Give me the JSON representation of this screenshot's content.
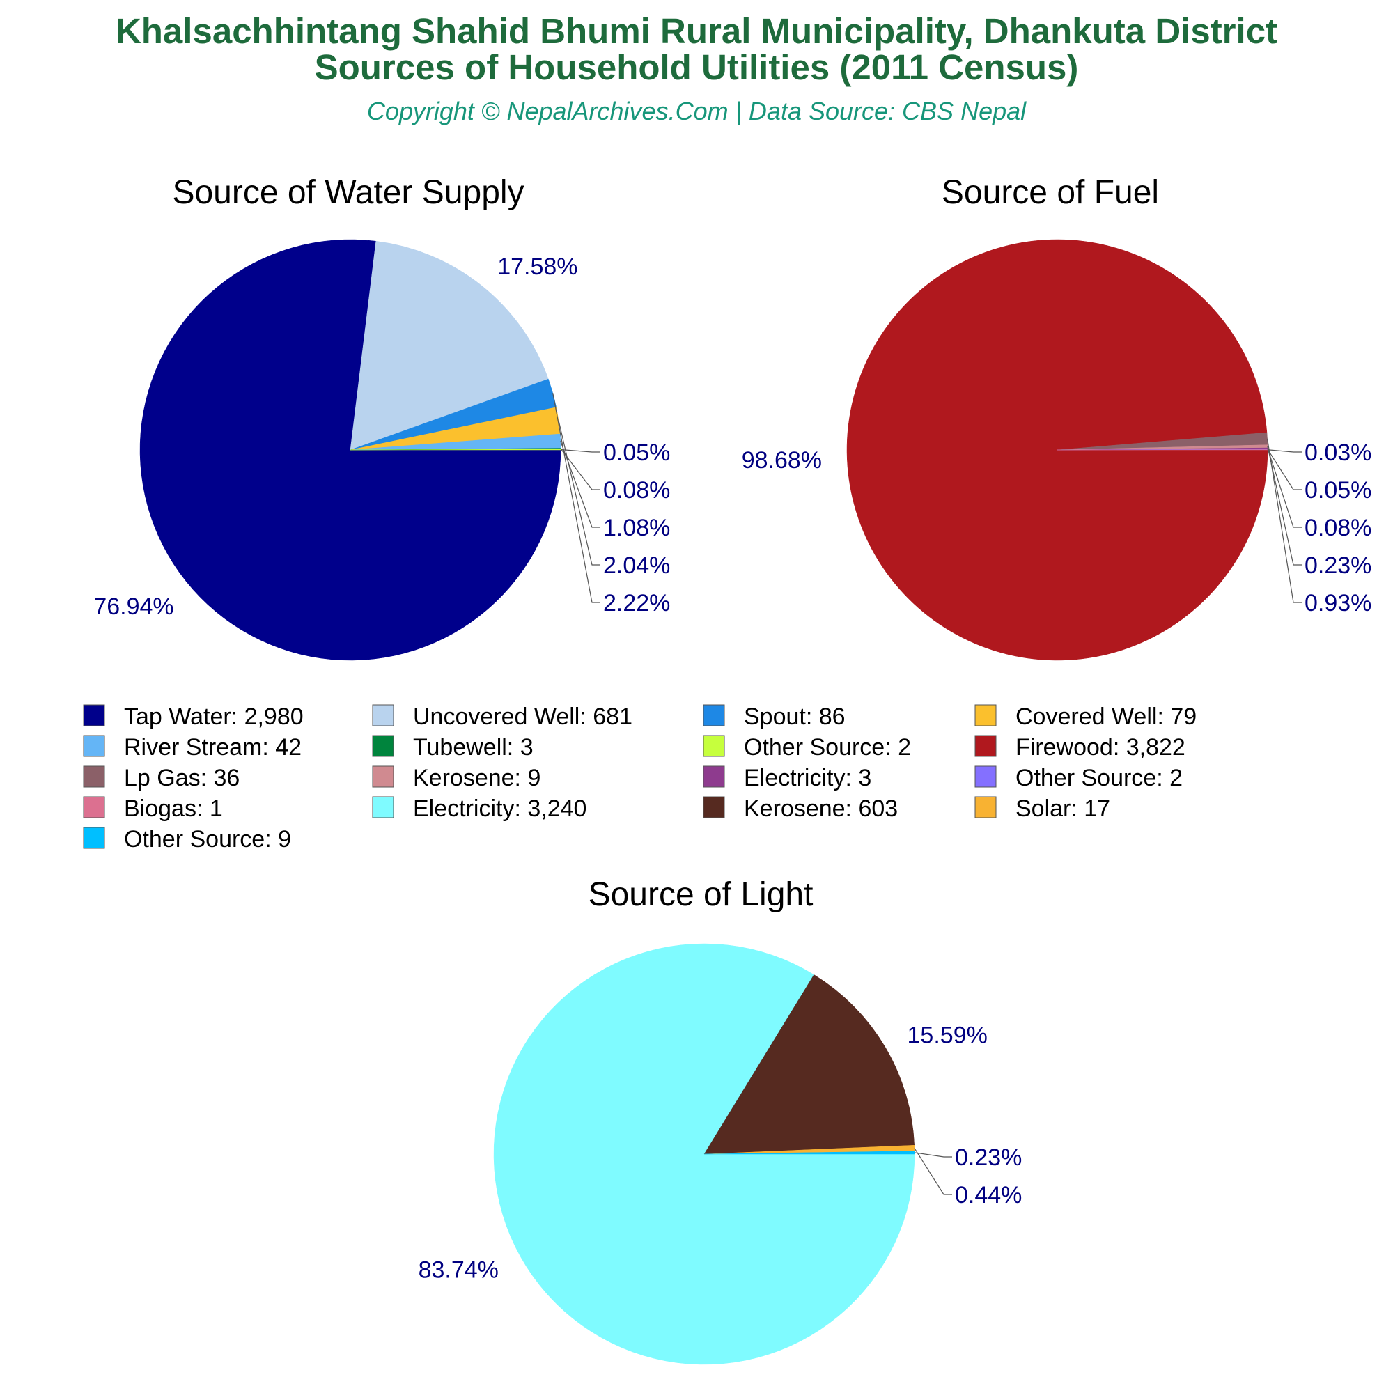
{
  "header": {
    "title_line1": "Khalsachhintang Shahid Bhumi Rural Municipality, Dhankuta District",
    "title_line2": "Sources of Household Utilities (2011 Census)",
    "subtitle": "Copyright © NepalArchives.Com | Data Source: CBS Nepal"
  },
  "chart_data": [
    {
      "type": "pie",
      "title": "Source of Water Supply",
      "slices": [
        {
          "label": "Tap Water",
          "value": 2980,
          "percent_label": "76.94%",
          "color": "#00008b"
        },
        {
          "label": "Uncovered Well",
          "value": 681,
          "percent_label": "17.58%",
          "color": "#b9d3ee"
        },
        {
          "label": "Spout",
          "value": 86,
          "percent_label": "2.22%",
          "color": "#1e88e5"
        },
        {
          "label": "Covered Well",
          "value": 79,
          "percent_label": "2.04%",
          "color": "#fbc02d"
        },
        {
          "label": "River Stream",
          "value": 42,
          "percent_label": "1.08%",
          "color": "#64b5f6"
        },
        {
          "label": "Tubewell",
          "value": 3,
          "percent_label": "0.08%",
          "color": "#00843d"
        },
        {
          "label": "Other Source",
          "value": 2,
          "percent_label": "0.05%",
          "color": "#c6ff3d"
        }
      ]
    },
    {
      "type": "pie",
      "title": "Source of Fuel",
      "slices": [
        {
          "label": "Firewood",
          "value": 3822,
          "percent_label": "98.68%",
          "color": "#b0181e"
        },
        {
          "label": "Lp Gas",
          "value": 36,
          "percent_label": "0.93%",
          "color": "#8b6068"
        },
        {
          "label": "Kerosene",
          "value": 9,
          "percent_label": "0.23%",
          "color": "#d08a90"
        },
        {
          "label": "Electricity",
          "value": 3,
          "percent_label": "0.08%",
          "color": "#8e3b8e"
        },
        {
          "label": "Other Source",
          "value": 2,
          "percent_label": "0.05%",
          "color": "#8470ff"
        },
        {
          "label": "Biogas",
          "value": 1,
          "percent_label": "0.03%",
          "color": "#dc7090"
        }
      ]
    },
    {
      "type": "pie",
      "title": "Source of Light",
      "slices": [
        {
          "label": "Electricity",
          "value": 3240,
          "percent_label": "83.74%",
          "color": "#7ffbff"
        },
        {
          "label": "Kerosene",
          "value": 603,
          "percent_label": "15.59%",
          "color": "#562a20"
        },
        {
          "label": "Solar",
          "value": 17,
          "percent_label": "0.44%",
          "color": "#f8b232"
        },
        {
          "label": "Other Source",
          "value": 9,
          "percent_label": "0.23%",
          "color": "#00bfff"
        }
      ]
    }
  ],
  "legend": {
    "columns": [
      [
        {
          "text": "Tap Water: 2,980",
          "color": "#00008b"
        },
        {
          "text": "River Stream: 42",
          "color": "#64b5f6"
        },
        {
          "text": "Lp Gas: 36",
          "color": "#8b6068"
        },
        {
          "text": "Biogas: 1",
          "color": "#dc7090"
        },
        {
          "text": "Other Source: 9",
          "color": "#00bfff"
        }
      ],
      [
        {
          "text": "Uncovered Well: 681",
          "color": "#b9d3ee"
        },
        {
          "text": "Tubewell: 3",
          "color": "#00843d"
        },
        {
          "text": "Kerosene: 9",
          "color": "#d08a90"
        },
        {
          "text": "Electricity: 3,240",
          "color": "#7ffbff"
        }
      ],
      [
        {
          "text": "Spout: 86",
          "color": "#1e88e5"
        },
        {
          "text": "Other Source: 2",
          "color": "#c6ff3d"
        },
        {
          "text": "Electricity: 3",
          "color": "#8e3b8e"
        },
        {
          "text": "Kerosene: 603",
          "color": "#562a20"
        }
      ],
      [
        {
          "text": "Covered Well: 79",
          "color": "#fbc02d"
        },
        {
          "text": "Firewood: 3,822",
          "color": "#b0181e"
        },
        {
          "text": "Other Source: 2",
          "color": "#8470ff"
        },
        {
          "text": "Solar: 17",
          "color": "#f8b232"
        }
      ]
    ]
  }
}
